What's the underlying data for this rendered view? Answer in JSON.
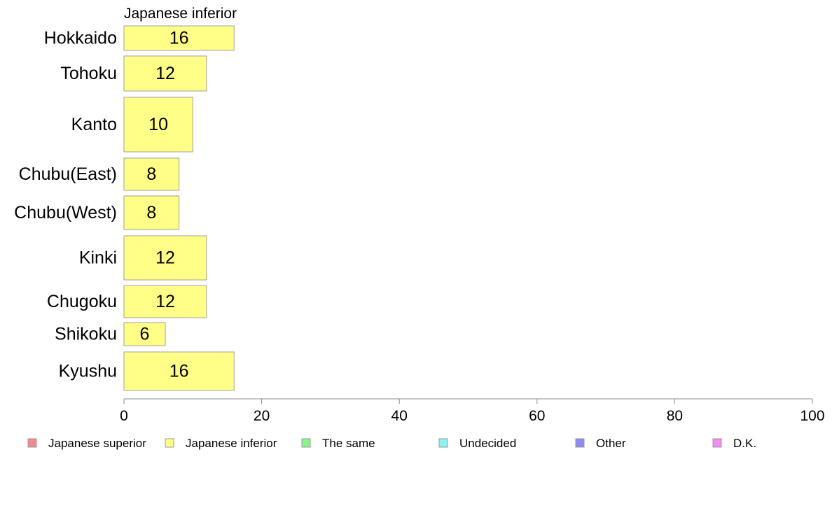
{
  "chart_data": {
    "type": "bar",
    "orientation": "horizontal",
    "panel_title": "Japanese inferior",
    "categories": [
      "Hokkaido",
      "Tohoku",
      "Kanto",
      "Chubu(East)",
      "Chubu(West)",
      "Kinki",
      "Chugoku",
      "Shikoku",
      "Kyushu"
    ],
    "values": [
      16,
      12,
      10,
      8,
      8,
      12,
      12,
      6,
      16
    ],
    "value_labels": [
      "16",
      "12",
      "10",
      "8",
      "8",
      "12",
      "12",
      "6",
      "16"
    ],
    "xlim": [
      0,
      100
    ],
    "x_ticks": [
      0,
      20,
      40,
      60,
      80,
      100
    ],
    "x_tick_labels": [
      "0",
      "20",
      "40",
      "60",
      "80",
      "100"
    ],
    "grid": false,
    "bar_color": "#ffff88",
    "bar_stroke": "#a0a0a0",
    "axis_color": "#888888",
    "legend": {
      "position": "bottom",
      "items": [
        {
          "label": "Japanese superior",
          "color": "#f28c8c"
        },
        {
          "label": "Japanese inferior",
          "color": "#ffff88"
        },
        {
          "label": "The same",
          "color": "#8cf28c"
        },
        {
          "label": "Undecided",
          "color": "#8cf2f2"
        },
        {
          "label": "Other",
          "color": "#8c8cf2"
        },
        {
          "label": "D.K.",
          "color": "#f28cf2"
        }
      ]
    }
  }
}
